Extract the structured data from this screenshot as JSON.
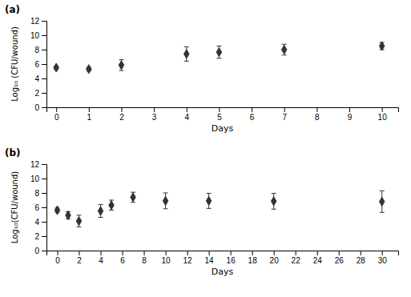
{
  "chart_data": [
    {
      "type": "scatter",
      "title": "(a)",
      "xlabel": "Days",
      "ylabel": "Log₁₀ (CFU/wound)",
      "x": [
        0,
        1,
        2,
        4,
        5,
        7,
        10
      ],
      "series": [
        {
          "values": [
            5.5,
            5.3,
            5.85,
            7.4,
            7.65,
            8.0,
            8.5
          ],
          "errors": [
            0.2,
            0.25,
            0.75,
            1.0,
            0.85,
            0.75,
            0.5
          ],
          "color": "#333333",
          "marker": "diamond"
        }
      ],
      "xlim": [
        -0.3,
        10.5
      ],
      "ylim": [
        0,
        12
      ],
      "xticks": [
        0,
        1,
        2,
        3,
        4,
        5,
        6,
        7,
        8,
        9,
        10
      ],
      "yticks": [
        0,
        2,
        4,
        6,
        8,
        10,
        12
      ]
    },
    {
      "type": "scatter",
      "title": "(b)",
      "xlabel": "Days",
      "ylabel": "Log₁₀(CFU/wound)",
      "x": [
        0,
        1,
        2,
        4,
        5,
        7,
        10,
        14,
        20,
        30
      ],
      "series": [
        {
          "values": [
            5.6,
            4.9,
            4.1,
            5.5,
            6.3,
            7.4,
            6.9,
            6.9,
            6.85,
            6.8
          ],
          "errors": [
            0.3,
            0.5,
            0.8,
            0.9,
            0.7,
            0.7,
            1.1,
            1.05,
            1.1,
            1.5
          ],
          "color": "#333333",
          "marker": "diamond"
        }
      ],
      "xlim": [
        -1,
        31.5
      ],
      "ylim": [
        0,
        12
      ],
      "xticks": [
        0,
        2,
        4,
        6,
        8,
        10,
        12,
        14,
        16,
        18,
        20,
        22,
        24,
        26,
        28,
        30
      ],
      "yticks": [
        0,
        2,
        4,
        6,
        8,
        10,
        12
      ]
    }
  ]
}
